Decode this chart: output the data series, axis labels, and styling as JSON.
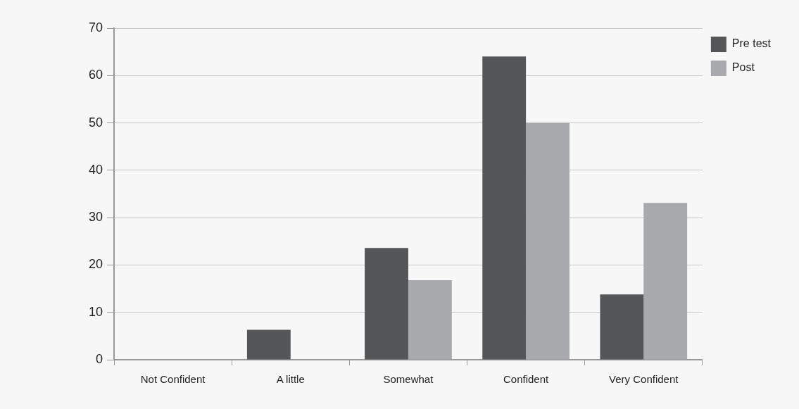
{
  "chart_data": {
    "type": "bar",
    "categories": [
      "Not Confident",
      "A little",
      "Somewhat",
      "Confident",
      "Very Confident"
    ],
    "series": [
      {
        "name": "Pre test",
        "color": "#555658",
        "values": [
          0,
          6.3,
          23.6,
          64,
          13.8
        ]
      },
      {
        "name": "Post",
        "color": "#a8a9ac",
        "values": [
          0,
          0,
          16.8,
          50,
          33.1
        ]
      }
    ],
    "ylim": [
      0,
      70
    ],
    "yticks": [
      0,
      10,
      20,
      30,
      40,
      50,
      60,
      70
    ],
    "grid": "y",
    "legend": "top right"
  }
}
